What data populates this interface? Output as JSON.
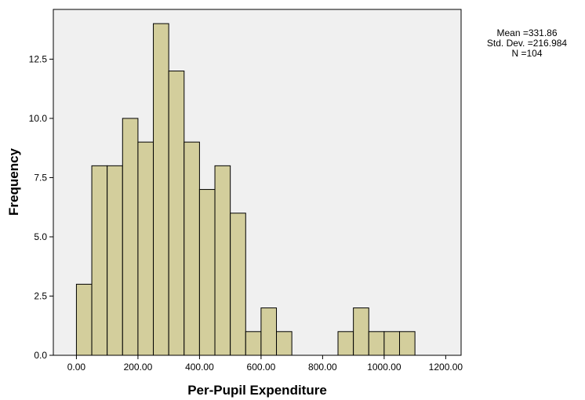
{
  "chart_data": {
    "type": "bar",
    "subtype": "histogram",
    "title": "",
    "xlabel": "Per-Pupil Expenditure",
    "ylabel": "Frequency",
    "bin_width": 50,
    "bins": [
      {
        "start": 0,
        "end": 50,
        "value": 3
      },
      {
        "start": 50,
        "end": 100,
        "value": 8
      },
      {
        "start": 100,
        "end": 150,
        "value": 8
      },
      {
        "start": 150,
        "end": 200,
        "value": 10
      },
      {
        "start": 200,
        "end": 250,
        "value": 9
      },
      {
        "start": 250,
        "end": 300,
        "value": 14
      },
      {
        "start": 300,
        "end": 350,
        "value": 12
      },
      {
        "start": 350,
        "end": 400,
        "value": 9
      },
      {
        "start": 400,
        "end": 450,
        "value": 7
      },
      {
        "start": 450,
        "end": 500,
        "value": 8
      },
      {
        "start": 500,
        "end": 550,
        "value": 6
      },
      {
        "start": 550,
        "end": 600,
        "value": 1
      },
      {
        "start": 600,
        "end": 650,
        "value": 2
      },
      {
        "start": 650,
        "end": 700,
        "value": 1
      },
      {
        "start": 850,
        "end": 900,
        "value": 1
      },
      {
        "start": 900,
        "end": 950,
        "value": 2
      },
      {
        "start": 950,
        "end": 1000,
        "value": 1
      },
      {
        "start": 1000,
        "end": 1050,
        "value": 1
      },
      {
        "start": 1050,
        "end": 1100,
        "value": 1
      }
    ],
    "xlim": [
      -75,
      1250
    ],
    "ylim": [
      0,
      14.6
    ],
    "x_ticks": [
      0,
      200,
      400,
      600,
      800,
      1000,
      1200
    ],
    "x_tick_labels": [
      "0.00",
      "200.00",
      "400.00",
      "600.00",
      "800.00",
      "1000.00",
      "1200.00"
    ],
    "y_ticks": [
      0,
      2.5,
      5,
      7.5,
      10,
      12.5
    ],
    "y_tick_labels": [
      "0.0",
      "2.5",
      "5.0",
      "7.5",
      "10.0",
      "12.5"
    ],
    "grid": false,
    "colors": {
      "bar_fill": "#d3ce9c",
      "bar_stroke": "#000000",
      "plot_background": "#f0f0f0"
    }
  },
  "stats": {
    "mean": "Mean =331.86",
    "std_dev": "Std. Dev. =216.984",
    "n": "N =104"
  }
}
